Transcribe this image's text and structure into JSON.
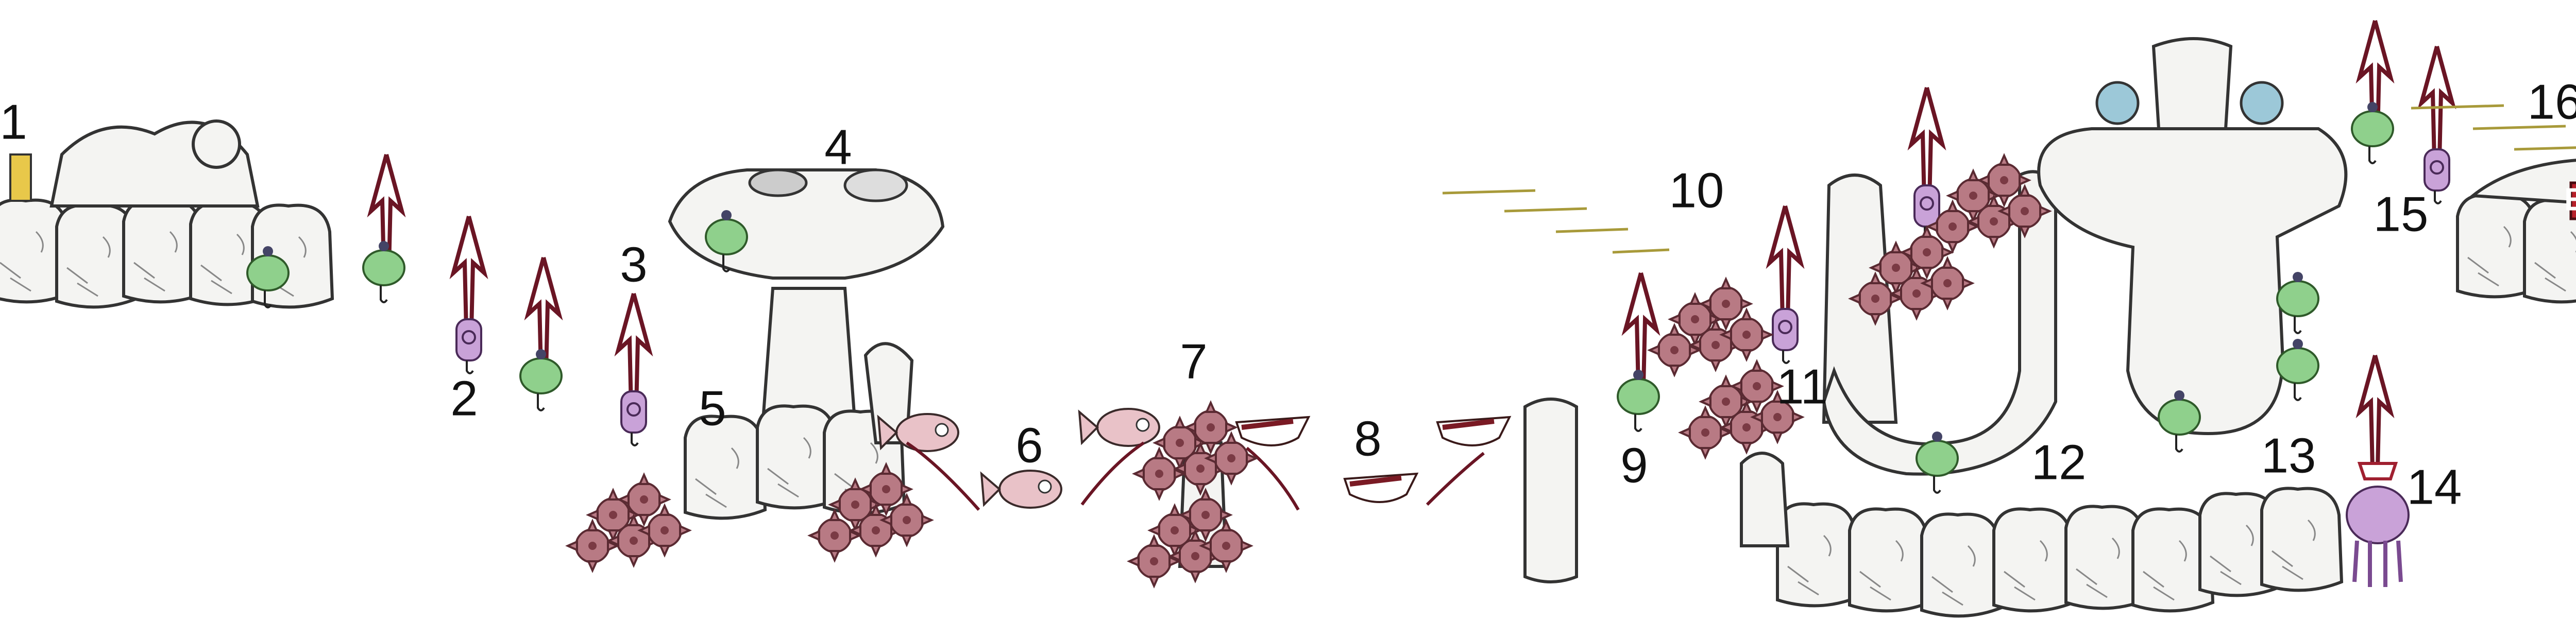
{
  "labels": [
    "1",
    "2",
    "3",
    "4",
    "5",
    "6",
    "7",
    "8",
    "9",
    "10",
    "11",
    "12",
    "13",
    "14",
    "15",
    "16"
  ],
  "exit_sign": "EXIT"
}
